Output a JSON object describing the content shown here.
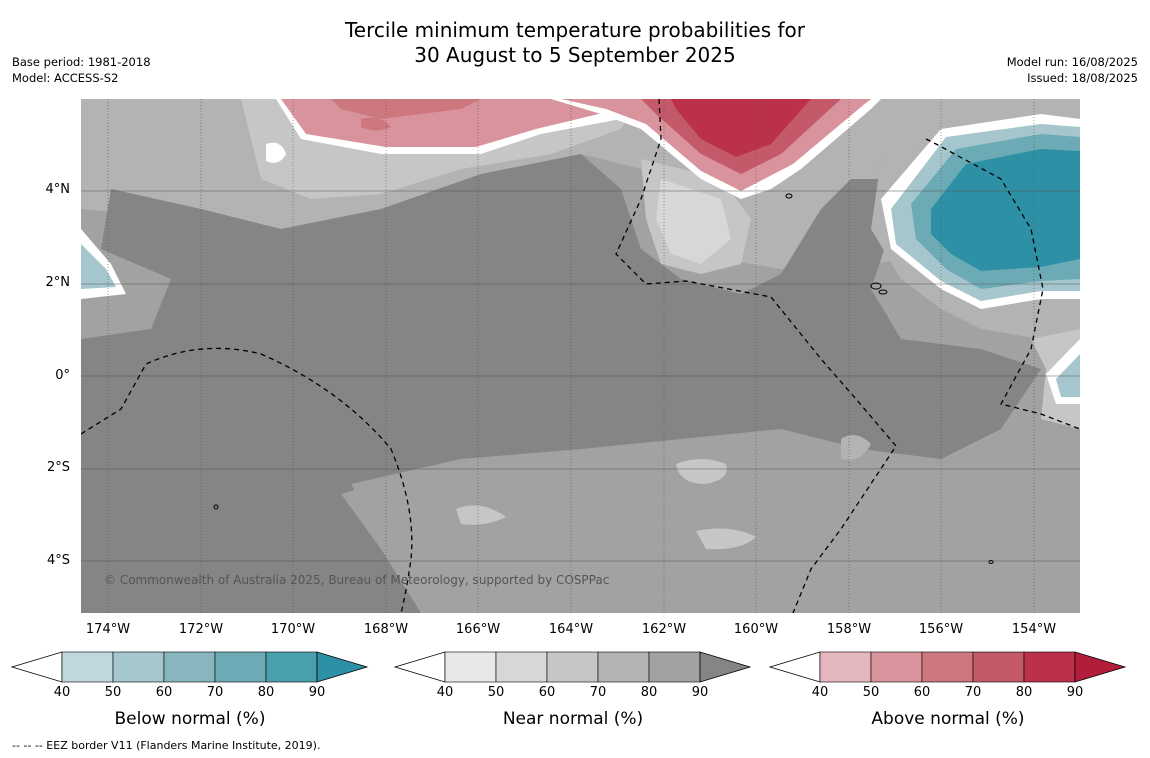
{
  "title": {
    "line1": "Tercile minimum temperature probabilities for",
    "line2": "30 August to 5 September 2025"
  },
  "meta_left": {
    "base_period": "Base period: 1981-2018",
    "model": "Model: ACCESS-S2"
  },
  "meta_right": {
    "model_run": "Model run: 16/08/2025",
    "issued": "Issued: 18/08/2025"
  },
  "copyright": "© Commonwealth of Australia 2025, Bureau of Meteorology, supported by COSPPac",
  "y_ticks": [
    "4°N",
    "2°N",
    "0°",
    "2°S",
    "4°S"
  ],
  "x_ticks": [
    "174°W",
    "172°W",
    "170°W",
    "168°W",
    "166°W",
    "164°W",
    "162°W",
    "160°W",
    "158°W",
    "156°W",
    "154°W"
  ],
  "colorbars": [
    {
      "title": "Below normal (%)",
      "labels": [
        "40",
        "50",
        "60",
        "70",
        "80",
        "90"
      ],
      "colors": [
        "#ffffff",
        "#bfd7dd",
        "#a4c6cc",
        "#88b6be",
        "#6cabb6",
        "#4a9fae",
        "#2e90a5"
      ]
    },
    {
      "title": "Near normal (%)",
      "labels": [
        "40",
        "50",
        "60",
        "70",
        "80",
        "90"
      ],
      "colors": [
        "#ffffff",
        "#e8e8e8",
        "#d7d7d7",
        "#c6c6c6",
        "#b3b3b3",
        "#a2a2a2",
        "#858585"
      ]
    },
    {
      "title": "Above normal (%)",
      "labels": [
        "40",
        "50",
        "60",
        "70",
        "80",
        "90"
      ],
      "colors": [
        "#ffffff",
        "#e4b6bd",
        "#d9939c",
        "#cd777f",
        "#c4596a",
        "#bb3149",
        "#b21d3c"
      ]
    }
  ],
  "footnote": "--  --  -- EEZ border V11 (Flanders Marine Institute, 2019)."
}
